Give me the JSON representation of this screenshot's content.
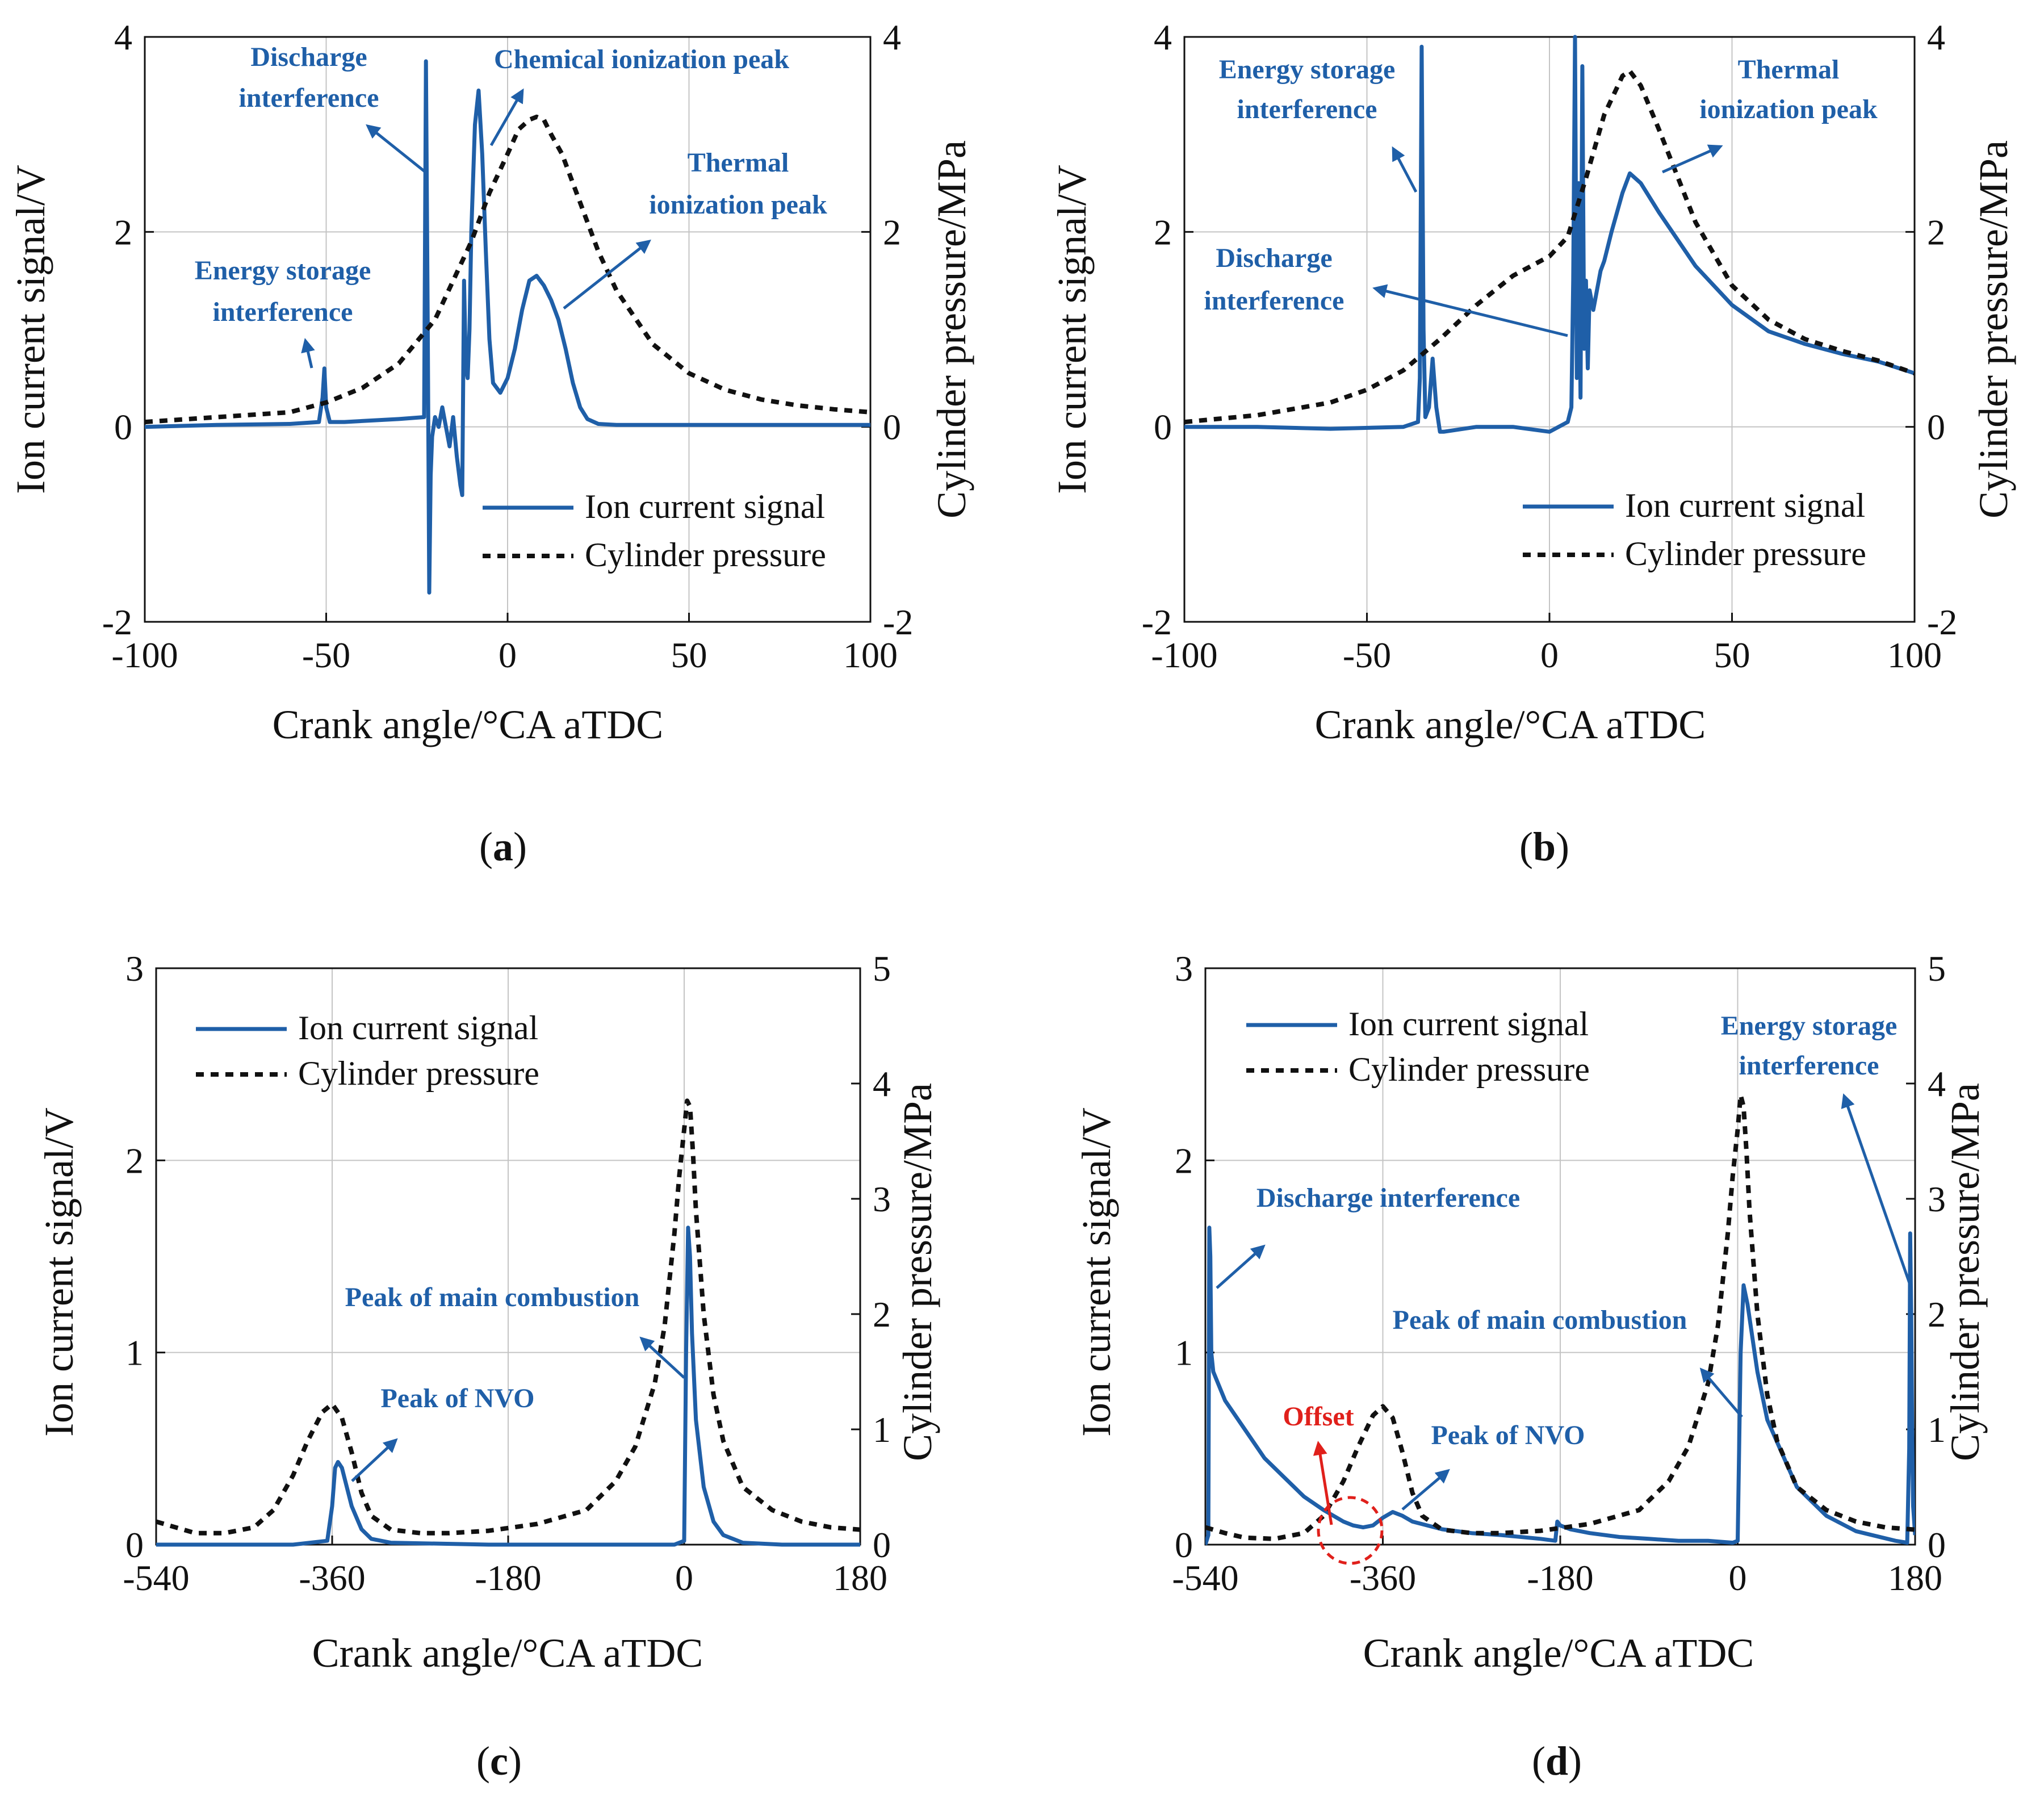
{
  "colors": {
    "ion": "#1f5fa8",
    "pressure": "#111111",
    "grid": "#c4c4c4",
    "offset": "#e0201b"
  },
  "chart_data": [
    {
      "id": "a",
      "panel_label": "a",
      "type": "line",
      "xlabel": "Crank angle/°CA aTDC",
      "ylabel": "Ion current signal/V",
      "y2label": "Cylinder pressure/MPa",
      "xlim": [
        -100,
        100
      ],
      "xticks": [
        -100,
        -50,
        0,
        50,
        100
      ],
      "ylim": [
        -2,
        4
      ],
      "yticks": [
        -2,
        0,
        2,
        4
      ],
      "y2lim": [
        -2,
        4
      ],
      "y2ticks": [
        -2,
        0,
        2,
        4
      ],
      "legend": [
        "Ion current signal",
        "Cylinder pressure"
      ],
      "legend_position": "bottom-right",
      "series": [
        {
          "name": "Ion current signal",
          "axis": "left",
          "x": [
            -100,
            -80,
            -60,
            -52,
            -51,
            -50.5,
            -50,
            -49,
            -45,
            -30,
            -23,
            -22.5,
            -22,
            -21.6,
            -21.2,
            -20.8,
            -20,
            -19,
            -18,
            -17,
            -16,
            -15,
            -14,
            -13,
            -12.5,
            -12,
            -11.5,
            -11,
            -10.5,
            -10,
            -9,
            -8,
            -7,
            -6,
            -5,
            -4,
            -2,
            0,
            2,
            4,
            6,
            8,
            10,
            12,
            14,
            16,
            18,
            20,
            22,
            25,
            30,
            40,
            60,
            80,
            100
          ],
          "values": [
            0,
            0.02,
            0.03,
            0.05,
            0.3,
            0.6,
            0.2,
            0.05,
            0.05,
            0.08,
            0.1,
            3.75,
            1.0,
            -1.7,
            -0.5,
            -0.1,
            0.1,
            0.0,
            0.2,
            0.0,
            -0.2,
            0.1,
            -0.3,
            -0.6,
            -0.7,
            1.5,
            0.6,
            0.5,
            1.0,
            2.0,
            3.1,
            3.45,
            2.8,
            1.8,
            0.9,
            0.45,
            0.35,
            0.5,
            0.8,
            1.2,
            1.5,
            1.55,
            1.45,
            1.3,
            1.1,
            0.8,
            0.45,
            0.2,
            0.08,
            0.03,
            0.02,
            0.02,
            0.02,
            0.02,
            0.02
          ]
        },
        {
          "name": "Cylinder pressure",
          "axis": "right",
          "x": [
            -100,
            -80,
            -60,
            -50,
            -40,
            -30,
            -20,
            -10,
            -5,
            0,
            3,
            6,
            8,
            10,
            12,
            15,
            20,
            25,
            30,
            40,
            50,
            60,
            70,
            80,
            90,
            100
          ],
          "values": [
            0.05,
            0.1,
            0.15,
            0.25,
            0.4,
            0.65,
            1.1,
            1.9,
            2.4,
            2.8,
            3.05,
            3.15,
            3.18,
            3.15,
            3.0,
            2.8,
            2.3,
            1.8,
            1.4,
            0.85,
            0.55,
            0.38,
            0.28,
            0.22,
            0.18,
            0.15
          ]
        }
      ],
      "annotations": [
        {
          "lines": [
            "Discharge",
            "interference"
          ]
        },
        {
          "lines": [
            "Chemical ionization peak"
          ]
        },
        {
          "lines": [
            "Thermal",
            "ionization peak"
          ]
        },
        {
          "lines": [
            "Energy storage",
            "interference"
          ]
        }
      ]
    },
    {
      "id": "b",
      "panel_label": "b",
      "type": "line",
      "xlabel": "Crank angle/°CA aTDC",
      "ylabel": "Ion current signal/V",
      "y2label": "Cylinder pressure/MPa",
      "xlim": [
        -100,
        100
      ],
      "xticks": [
        -100,
        -50,
        0,
        50,
        100
      ],
      "ylim": [
        -2,
        4
      ],
      "yticks": [
        -2,
        0,
        2,
        4
      ],
      "y2lim": [
        -2,
        4
      ],
      "y2ticks": [
        -2,
        0,
        2,
        4
      ],
      "legend": [
        "Ion current signal",
        "Cylinder pressure"
      ],
      "legend_position": "bottom-right",
      "series": [
        {
          "name": "Ion current signal",
          "axis": "left",
          "x": [
            -100,
            -80,
            -60,
            -40,
            -36,
            -35.5,
            -35,
            -34.5,
            -34,
            -33,
            -32,
            -31,
            -30,
            -29,
            -20,
            -10,
            0,
            5,
            6,
            6.5,
            7,
            7.5,
            8,
            8.5,
            9,
            9.5,
            10,
            10.5,
            11,
            12,
            13,
            14,
            15,
            17,
            20,
            22,
            25,
            30,
            40,
            50,
            60,
            70,
            80,
            90,
            100
          ],
          "values": [
            0,
            0,
            -0.02,
            0,
            0.05,
            0.5,
            3.9,
            1.0,
            0.1,
            0.2,
            0.7,
            0.2,
            -0.05,
            -0.05,
            0,
            0,
            -0.05,
            0.05,
            0.2,
            1.5,
            4.0,
            0.5,
            2.5,
            0.3,
            3.7,
            0.8,
            1.5,
            0.6,
            1.4,
            1.2,
            1.4,
            1.6,
            1.7,
            2.0,
            2.4,
            2.6,
            2.5,
            2.2,
            1.65,
            1.25,
            0.98,
            0.85,
            0.75,
            0.67,
            0.55
          ]
        },
        {
          "name": "Cylinder pressure",
          "axis": "right",
          "x": [
            -100,
            -80,
            -60,
            -50,
            -40,
            -30,
            -20,
            -10,
            -5,
            0,
            5,
            10,
            15,
            20,
            22,
            25,
            30,
            40,
            50,
            60,
            70,
            80,
            90,
            100
          ],
          "values": [
            0.05,
            0.12,
            0.25,
            0.38,
            0.58,
            0.9,
            1.25,
            1.55,
            1.65,
            1.75,
            1.95,
            2.55,
            3.2,
            3.6,
            3.65,
            3.5,
            3.05,
            2.1,
            1.45,
            1.1,
            0.9,
            0.78,
            0.68,
            0.55
          ]
        }
      ],
      "annotations": [
        {
          "lines": [
            "Energy storage",
            "interference"
          ]
        },
        {
          "lines": [
            "Thermal",
            "ionization peak"
          ]
        },
        {
          "lines": [
            "Discharge",
            "interference"
          ]
        }
      ]
    },
    {
      "id": "c",
      "panel_label": "c",
      "type": "line",
      "xlabel": "Crank angle/°CA aTDC",
      "ylabel": "Ion current signal/V",
      "y2label": "Cylinder pressure/MPa",
      "xlim": [
        -540,
        180
      ],
      "xticks": [
        -540,
        -360,
        -180,
        0,
        180
      ],
      "ylim": [
        0,
        3
      ],
      "yticks": [
        0,
        1,
        2,
        3
      ],
      "y2lim": [
        0,
        5
      ],
      "y2ticks": [
        0,
        1,
        2,
        3,
        4,
        5
      ],
      "legend": [
        "Ion current signal",
        "Cylinder pressure"
      ],
      "legend_position": "top-left",
      "series": [
        {
          "name": "Ion current signal",
          "axis": "left",
          "x": [
            -540,
            -400,
            -365,
            -360,
            -357,
            -354,
            -350,
            -345,
            -340,
            -330,
            -320,
            -300,
            -200,
            -100,
            -10,
            0,
            2,
            4,
            6,
            8,
            12,
            20,
            30,
            40,
            60,
            100,
            180
          ],
          "values": [
            0,
            0,
            0.02,
            0.2,
            0.4,
            0.43,
            0.4,
            0.3,
            0.2,
            0.08,
            0.03,
            0.01,
            0,
            0,
            0,
            0.02,
            1.0,
            1.65,
            1.5,
            1.1,
            0.65,
            0.3,
            0.12,
            0.05,
            0.01,
            0,
            0
          ]
        },
        {
          "name": "Cylinder pressure",
          "axis": "right",
          "x": [
            -540,
            -520,
            -500,
            -470,
            -440,
            -420,
            -400,
            -385,
            -370,
            -360,
            -350,
            -340,
            -330,
            -320,
            -300,
            -270,
            -240,
            -200,
            -150,
            -100,
            -70,
            -50,
            -30,
            -20,
            -10,
            -5,
            0,
            3,
            6,
            9,
            12,
            20,
            30,
            40,
            60,
            90,
            120,
            150,
            180
          ],
          "values": [
            0.2,
            0.15,
            0.1,
            0.1,
            0.15,
            0.3,
            0.6,
            0.9,
            1.15,
            1.22,
            1.1,
            0.8,
            0.45,
            0.25,
            0.13,
            0.1,
            0.1,
            0.12,
            0.18,
            0.3,
            0.55,
            0.85,
            1.4,
            1.9,
            2.7,
            3.2,
            3.6,
            3.85,
            3.8,
            3.4,
            2.9,
            2.0,
            1.3,
            0.9,
            0.5,
            0.3,
            0.2,
            0.15,
            0.13
          ]
        }
      ],
      "annotations": [
        {
          "lines": [
            "Peak of main combustion"
          ]
        },
        {
          "lines": [
            "Peak of NVO"
          ]
        }
      ]
    },
    {
      "id": "d",
      "panel_label": "d",
      "type": "line",
      "xlabel": "Crank angle/°CA aTDC",
      "ylabel": "Ion current signal/V",
      "y2label": "Cylinder pressure/MPa",
      "xlim": [
        -540,
        180
      ],
      "xticks": [
        -540,
        -360,
        -180,
        0,
        180
      ],
      "ylim": [
        0,
        3
      ],
      "yticks": [
        0,
        1,
        2,
        3
      ],
      "y2lim": [
        0,
        5
      ],
      "y2ticks": [
        0,
        1,
        2,
        3,
        4,
        5
      ],
      "legend": [
        "Ion current signal",
        "Cylinder pressure"
      ],
      "legend_position": "top-left",
      "series": [
        {
          "name": "Ion current signal",
          "axis": "left",
          "x": [
            -540,
            -537,
            -536,
            -535,
            -534,
            -532,
            -528,
            -520,
            -500,
            -480,
            -460,
            -440,
            -420,
            -400,
            -390,
            -380,
            -370,
            -360,
            -350,
            -340,
            -330,
            -300,
            -270,
            -240,
            -200,
            -185,
            -183,
            -180,
            -170,
            -150,
            -120,
            -90,
            -60,
            -30,
            -5,
            0,
            3,
            6,
            10,
            20,
            30,
            60,
            90,
            120,
            160,
            172,
            174,
            175,
            176,
            177,
            178,
            180
          ],
          "values": [
            0,
            0.05,
            1.65,
            1.5,
            1.0,
            0.9,
            0.85,
            0.75,
            0.6,
            0.45,
            0.35,
            0.25,
            0.18,
            0.12,
            0.1,
            0.09,
            0.1,
            0.14,
            0.17,
            0.15,
            0.12,
            0.08,
            0.06,
            0.05,
            0.03,
            0.02,
            0.12,
            0.1,
            0.08,
            0.06,
            0.04,
            0.03,
            0.02,
            0.02,
            0.01,
            0.02,
            1.0,
            1.35,
            1.25,
            0.9,
            0.65,
            0.3,
            0.15,
            0.07,
            0.02,
            0.01,
            0.5,
            1.62,
            1.2,
            0.6,
            0.2,
            0.05
          ]
        },
        {
          "name": "Cylinder pressure",
          "axis": "right",
          "x": [
            -540,
            -520,
            -500,
            -470,
            -440,
            -420,
            -400,
            -385,
            -370,
            -360,
            -350,
            -340,
            -330,
            -320,
            -300,
            -270,
            -240,
            -200,
            -150,
            -100,
            -70,
            -50,
            -30,
            -20,
            -10,
            -5,
            0,
            3,
            6,
            9,
            12,
            20,
            30,
            40,
            60,
            90,
            120,
            150,
            180
          ],
          "values": [
            0.15,
            0.1,
            0.06,
            0.05,
            0.1,
            0.25,
            0.55,
            0.85,
            1.12,
            1.2,
            1.1,
            0.8,
            0.45,
            0.25,
            0.13,
            0.1,
            0.1,
            0.12,
            0.18,
            0.3,
            0.55,
            0.85,
            1.4,
            1.9,
            2.7,
            3.2,
            3.6,
            3.9,
            3.8,
            3.4,
            2.9,
            2.0,
            1.3,
            0.9,
            0.5,
            0.3,
            0.2,
            0.15,
            0.13
          ]
        }
      ],
      "annotations": [
        {
          "lines": [
            "Energy storage",
            "interference"
          ]
        },
        {
          "lines": [
            "Discharge interference"
          ]
        },
        {
          "lines": [
            "Peak of main combustion"
          ]
        },
        {
          "lines": [
            "Peak of NVO"
          ]
        },
        {
          "lines": [
            "Offset"
          ],
          "color": "offset"
        }
      ]
    }
  ]
}
